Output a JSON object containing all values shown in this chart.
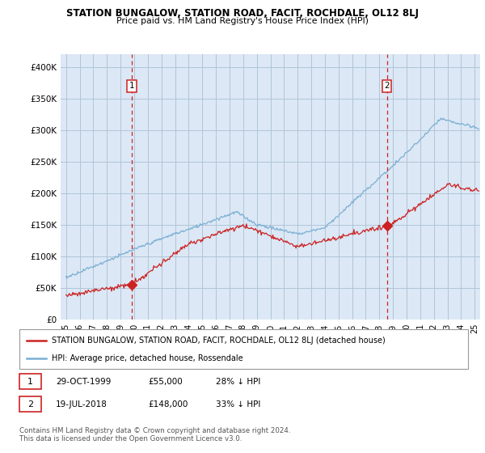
{
  "title": "STATION BUNGALOW, STATION ROAD, FACIT, ROCHDALE, OL12 8LJ",
  "subtitle": "Price paid vs. HM Land Registry's House Price Index (HPI)",
  "hpi_color": "#7bafd4",
  "price_color": "#cc2222",
  "marker_color": "#cc2222",
  "background_color": "#dce8f5",
  "grid_color": "#b0c4d8",
  "ylim": [
    0,
    420000
  ],
  "yticks": [
    0,
    50000,
    100000,
    150000,
    200000,
    250000,
    300000,
    350000,
    400000
  ],
  "legend_label_red": "STATION BUNGALOW, STATION ROAD, FACIT, ROCHDALE, OL12 8LJ (detached house)",
  "legend_label_blue": "HPI: Average price, detached house, Rossendale",
  "sale1_label": "1",
  "sale1_date": "29-OCT-1999",
  "sale1_price": "£55,000",
  "sale1_hpi": "28% ↓ HPI",
  "sale1_year": 1999.83,
  "sale1_value": 55000,
  "sale2_label": "2",
  "sale2_date": "19-JUL-2018",
  "sale2_price": "£148,000",
  "sale2_hpi": "33% ↓ HPI",
  "sale2_year": 2018.55,
  "sale2_value": 148000,
  "footer": "Contains HM Land Registry data © Crown copyright and database right 2024.\nThis data is licensed under the Open Government Licence v3.0.",
  "xlim_left": 1994.6,
  "xlim_right": 2025.4
}
